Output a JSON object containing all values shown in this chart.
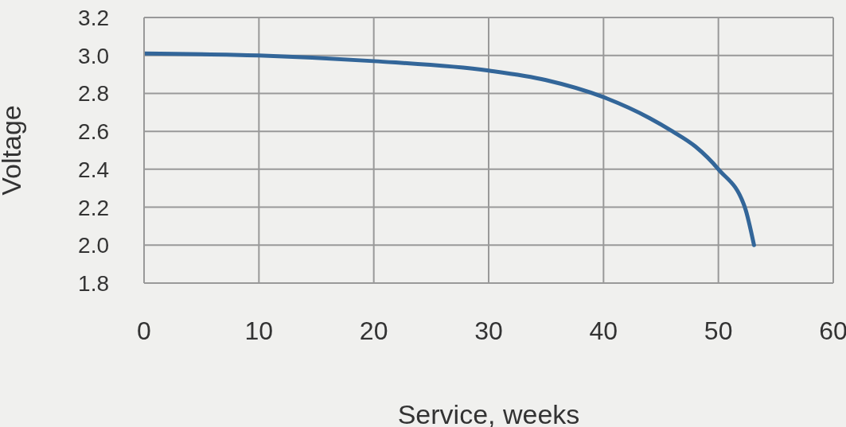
{
  "chart_data": {
    "type": "line",
    "xlabel": "Service, weeks",
    "ylabel": "Voltage",
    "x": [
      0,
      10,
      20,
      30,
      35,
      40,
      44,
      46,
      48,
      50,
      52.3,
      53.1
    ],
    "series": [
      {
        "color": "#336699",
        "values": [
          3.01,
          3.0,
          2.97,
          2.92,
          2.87,
          2.78,
          2.67,
          2.6,
          2.52,
          2.4,
          2.2,
          2.0
        ]
      }
    ],
    "xlim": [
      0,
      60
    ],
    "xticks": [
      0,
      10,
      20,
      30,
      40,
      50,
      60
    ],
    "ylim": [
      1.8,
      3.2
    ],
    "yticks": [
      1.8,
      {
        "value": 2,
        "label": "2.0"
      },
      2.2,
      2.4,
      2.6,
      2.8,
      {
        "value": 3,
        "label": "3.0"
      },
      3.2
    ],
    "grid": true,
    "legend": false,
    "marker": "none",
    "line_style": "solid"
  }
}
